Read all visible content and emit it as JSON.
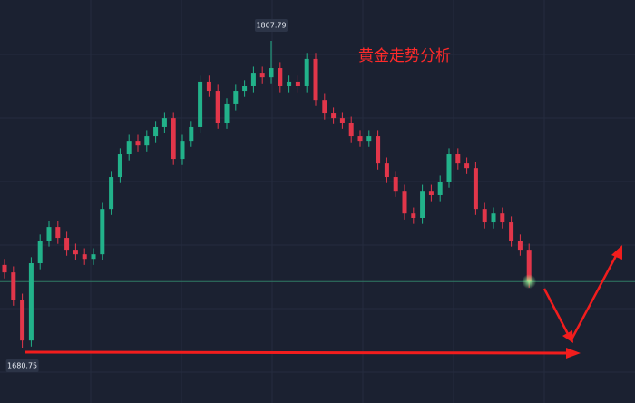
{
  "chart_data": {
    "type": "candlestick",
    "title": "黄金走势分析",
    "up_color": "#22b28a",
    "down_color": "#e2364a",
    "price_line_color": "#2f7a64",
    "annotations": {
      "high": 1807.79,
      "low": 1680.75
    },
    "open": [
      1715.0,
      1711.9,
      1700.6,
      1683.7,
      1715.7,
      1725.1,
      1730.7,
      1726.2,
      1721.3,
      1719.4,
      1717.5,
      1719.4,
      1738.2,
      1751.4,
      1760.8,
      1766.4,
      1764.5,
      1768.3,
      1772.1,
      1775.8,
      1758.9,
      1766.4,
      1772.1,
      1790.9,
      1787.1,
      1773.9,
      1781.5,
      1787.1,
      1789.0,
      1794.6,
      1792.7,
      1796.5,
      1789.0,
      1790.9,
      1789.0,
      1800.3,
      1783.3,
      1777.7,
      1775.8,
      1773.9,
      1768.3,
      1766.4,
      1768.3,
      1757.0,
      1751.4,
      1745.7,
      1736.3,
      1734.5,
      1745.7,
      1743.9,
      1749.5,
      1760.8,
      1757.0,
      1755.1,
      1738.2,
      1732.6,
      1736.3,
      1732.6,
      1725.1,
      1721.3
    ],
    "high": [
      1717.5,
      1714.4,
      1703.1,
      1718.2,
      1727.6,
      1733.2,
      1733.2,
      1728.7,
      1723.8,
      1721.9,
      1721.9,
      1740.7,
      1753.9,
      1763.3,
      1768.9,
      1768.9,
      1770.8,
      1774.6,
      1778.3,
      1778.3,
      1768.9,
      1774.6,
      1793.4,
      1793.4,
      1789.6,
      1784.0,
      1789.6,
      1791.5,
      1797.1,
      1797.1,
      1807.79,
      1799.0,
      1793.4,
      1793.4,
      1802.8,
      1802.8,
      1785.8,
      1780.2,
      1778.3,
      1776.4,
      1770.8,
      1770.8,
      1770.8,
      1759.5,
      1753.9,
      1748.2,
      1738.8,
      1748.2,
      1748.2,
      1752.0,
      1763.3,
      1763.3,
      1759.5,
      1757.6,
      1740.7,
      1738.8,
      1738.8,
      1735.1,
      1727.6,
      1723.8
    ],
    "low": [
      1709.4,
      1698.1,
      1680.75,
      1681.2,
      1713.2,
      1722.6,
      1723.7,
      1718.8,
      1716.9,
      1715.0,
      1715.0,
      1716.9,
      1735.7,
      1748.9,
      1758.3,
      1762.0,
      1762.0,
      1765.8,
      1769.6,
      1756.4,
      1756.4,
      1763.9,
      1769.6,
      1784.6,
      1771.4,
      1771.4,
      1779.0,
      1784.6,
      1786.5,
      1790.2,
      1790.2,
      1786.5,
      1786.5,
      1786.5,
      1786.5,
      1780.8,
      1775.2,
      1773.3,
      1771.4,
      1765.8,
      1763.9,
      1763.9,
      1754.5,
      1748.9,
      1743.2,
      1733.8,
      1732.0,
      1732.0,
      1741.4,
      1741.4,
      1747.0,
      1754.5,
      1752.6,
      1735.7,
      1730.1,
      1730.1,
      1730.1,
      1722.6,
      1718.8,
      1705.6
    ],
    "close": [
      1711.9,
      1700.6,
      1683.7,
      1715.7,
      1725.1,
      1730.7,
      1726.2,
      1721.3,
      1719.4,
      1717.5,
      1719.4,
      1738.2,
      1751.4,
      1760.8,
      1766.4,
      1764.5,
      1768.3,
      1772.1,
      1775.8,
      1758.9,
      1766.4,
      1772.1,
      1790.9,
      1787.1,
      1773.9,
      1781.5,
      1787.1,
      1789.0,
      1794.6,
      1792.7,
      1796.5,
      1789.0,
      1790.9,
      1789.0,
      1800.3,
      1783.3,
      1777.7,
      1775.8,
      1773.9,
      1768.3,
      1766.4,
      1768.3,
      1757.0,
      1751.4,
      1745.7,
      1736.3,
      1734.5,
      1745.7,
      1743.9,
      1749.5,
      1760.8,
      1757.0,
      1755.1,
      1738.2,
      1732.6,
      1736.3,
      1732.6,
      1725.1,
      1721.3,
      1708.1
    ]
  }
}
